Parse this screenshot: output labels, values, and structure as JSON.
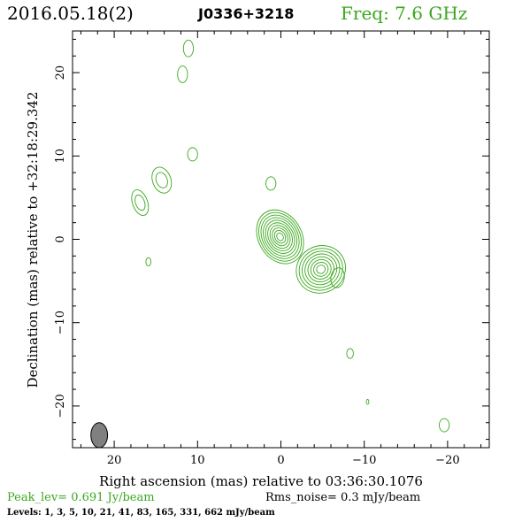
{
  "header": {
    "date": "2016.05.18(2)",
    "source": "J0336+3218",
    "freq": "Freq: 7.6 GHz"
  },
  "footer": {
    "peak": "Peak_lev=  0.691 Jy/beam",
    "rms": "Rms_noise=  0.3 mJy/beam",
    "levels": "Levels:   1,    3,    5,  10,  21,  41,   83, 165, 331, 662 mJy/beam"
  },
  "colors": {
    "contour": "#3aa81c",
    "axis": "#000000",
    "beam_fill": "#808080"
  },
  "chart_data": {
    "type": "contour",
    "xlabel": "Right ascension (mas) relative to 03:36:30.1076",
    "ylabel": "Declination (mas) relative to +32:18:29.342",
    "xlim": [
      25,
      -25
    ],
    "ylim": [
      -25,
      25
    ],
    "xticks": [
      20,
      10,
      0,
      -10,
      -20
    ],
    "yticks": [
      20,
      10,
      0,
      -10,
      -20
    ],
    "xtick_labels": [
      "20",
      "10",
      "0",
      "−10",
      "−20"
    ],
    "ytick_labels": [
      "20",
      "10",
      "0",
      "−10",
      "−20"
    ],
    "levels_mJy": [
      1,
      3,
      5,
      10,
      21,
      41,
      83,
      165,
      331,
      662
    ],
    "beam": {
      "x": 21.8,
      "y": -23.5,
      "major": 3.0,
      "minor": 2.0,
      "pa_deg": 0
    },
    "components": [
      {
        "id": "core",
        "x": 0.1,
        "y": 0.3,
        "peak_mJy": 691,
        "rx": 2.6,
        "ry": 3.4,
        "angle": -30,
        "levels": 10
      },
      {
        "id": "jet",
        "x": -4.8,
        "y": -3.6,
        "peak_mJy": 200,
        "rx": 3.0,
        "ry": 2.8,
        "angle": -30,
        "levels": 8
      },
      {
        "id": "ne-blob-1",
        "x": 14.3,
        "y": 7.1,
        "peak_mJy": 3,
        "rx": 1.1,
        "ry": 1.6,
        "angle": -20,
        "levels": 2
      },
      {
        "id": "ne-blob-2",
        "x": 16.9,
        "y": 4.4,
        "peak_mJy": 3,
        "rx": 0.9,
        "ry": 1.6,
        "angle": -20,
        "levels": 2
      },
      {
        "id": "n-blob-1",
        "x": 11.1,
        "y": 22.9,
        "peak_mJy": 1,
        "rx": 0.6,
        "ry": 1.0,
        "angle": 0,
        "levels": 1
      },
      {
        "id": "n-blob-2",
        "x": 11.8,
        "y": 19.8,
        "peak_mJy": 1,
        "rx": 0.6,
        "ry": 1.0,
        "angle": 0,
        "levels": 1
      },
      {
        "id": "n-blob-3",
        "x": 10.6,
        "y": 10.2,
        "peak_mJy": 1,
        "rx": 0.6,
        "ry": 0.8,
        "angle": 0,
        "levels": 1
      },
      {
        "id": "n-blob-4",
        "x": 1.2,
        "y": 6.7,
        "peak_mJy": 1,
        "rx": 0.6,
        "ry": 0.8,
        "angle": 0,
        "levels": 1
      },
      {
        "id": "w-blob-1",
        "x": -6.8,
        "y": -4.6,
        "peak_mJy": 1,
        "rx": 0.8,
        "ry": 1.2,
        "angle": 10,
        "levels": 1
      },
      {
        "id": "w-blob-2",
        "x": 15.9,
        "y": -2.7,
        "peak_mJy": 1,
        "rx": 0.3,
        "ry": 0.5,
        "angle": 0,
        "levels": 1
      },
      {
        "id": "sw-blob-1",
        "x": -8.3,
        "y": -13.7,
        "peak_mJy": 1,
        "rx": 0.4,
        "ry": 0.6,
        "angle": 0,
        "levels": 1
      },
      {
        "id": "sw-blob-2",
        "x": -10.4,
        "y": -19.5,
        "peak_mJy": 1,
        "rx": 0.15,
        "ry": 0.3,
        "angle": 0,
        "levels": 1
      },
      {
        "id": "sw-blob-3",
        "x": -19.6,
        "y": -22.3,
        "peak_mJy": 1,
        "rx": 0.6,
        "ry": 0.8,
        "angle": 0,
        "levels": 1
      }
    ]
  }
}
